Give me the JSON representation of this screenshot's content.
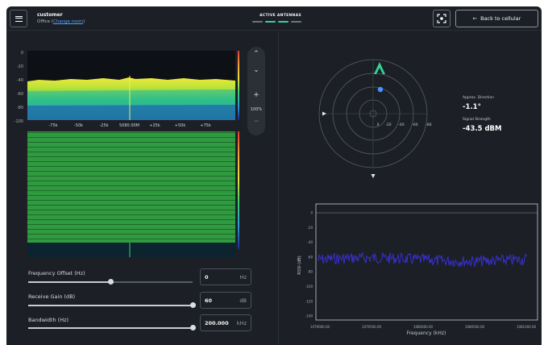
{
  "header": {
    "menu_icon": "hamburger-menu-icon",
    "title": "customer",
    "location": "Office",
    "change_room_label": "Change room",
    "active_antennas_label": "ACTIVE ANTENNAS",
    "antenna_indicators": [
      {
        "color": "#6b7280"
      },
      {
        "color": "#34d399"
      },
      {
        "color": "#34d399"
      },
      {
        "color": "#6b7280"
      }
    ],
    "target_icon": "focus-target-icon",
    "back_label": "Back to cellular",
    "back_icon": "arrow-left-icon"
  },
  "spectrum": {
    "y_ticks": [
      "0",
      "-20",
      "-40",
      "-60",
      "-80",
      "-100"
    ],
    "x_ticks": [
      "-75k",
      "-50k",
      "-25k",
      "5080.00M",
      "+25k",
      "+50k",
      "+75k"
    ]
  },
  "zoom": {
    "up_icon": "chevron-up-icon",
    "down_icon": "chevron-down-icon",
    "zoom_in_icon": "plus-icon",
    "zoom_out_icon": "minus-icon",
    "zoom_level": "100%"
  },
  "controls": {
    "frequency_offset": {
      "label": "Frequency Offset (Hz)",
      "value": "0",
      "unit": "Hz",
      "level": 0.5
    },
    "receive_gain": {
      "label": "Receive Gain (dB)",
      "value": "60",
      "unit": "dB",
      "level": 1.0
    },
    "bandwidth": {
      "label": "Bandwidth (Hz)",
      "value": "200.000",
      "unit": "kHz",
      "level": 1.0
    }
  },
  "direction": {
    "ring_labels": [
      "0",
      "-20",
      "-40",
      "-60",
      "-80"
    ],
    "approx_direction_label": "Approx. Direction",
    "approx_direction_value": "-1.1°",
    "signal_strength_label": "Signal Strength",
    "signal_strength_value": "-43.5 dBM",
    "accent": "#34d399",
    "point_color": "#3b82f6"
  },
  "rssi_chart": {
    "ylabel": "RSSI (dB)",
    "xlabel": "Frequency (kHz)",
    "y_ticks": [
      "0",
      "-20",
      "-40",
      "-60",
      "-80",
      "-100",
      "-120",
      "-140"
    ],
    "x_ticks": [
      "1079000.00",
      "1079500.00",
      "1080000.00",
      "1080500.00",
      "1081000.00"
    ],
    "trace_color": "#3b30d8"
  }
}
